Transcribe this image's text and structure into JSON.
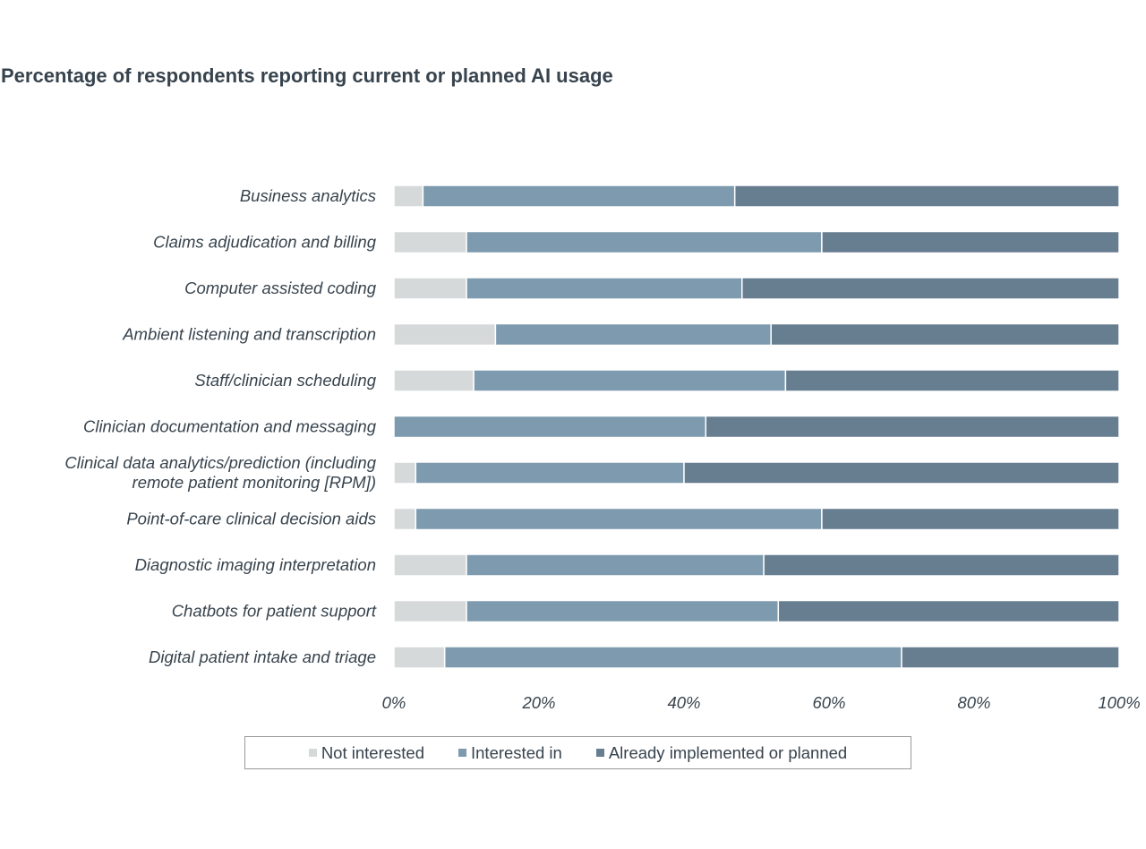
{
  "title": "Percentage of respondents reporting current or planned AI usage",
  "chart_data": {
    "type": "bar",
    "orientation": "horizontal",
    "stacked": true,
    "title": "Percentage of respondents reporting current or planned AI usage",
    "xlabel": "",
    "ylabel": "",
    "xlim": [
      0,
      100
    ],
    "xticks": [
      "0%",
      "20%",
      "40%",
      "60%",
      "80%",
      "100%"
    ],
    "categories": [
      [
        "Business analytics"
      ],
      [
        "Claims adjudication and billing"
      ],
      [
        "Computer assisted coding"
      ],
      [
        "Ambient listening and transcription"
      ],
      [
        "Staff/clinician scheduling"
      ],
      [
        "Clinician documentation and messaging"
      ],
      [
        "Clinical data analytics/prediction (including",
        "remote patient monitoring [RPM])"
      ],
      [
        "Point-of-care clinical decision aids"
      ],
      [
        "Diagnostic imaging interpretation"
      ],
      [
        "Chatbots for patient support"
      ],
      [
        "Digital patient intake and triage"
      ]
    ],
    "series": [
      {
        "name": "Not interested",
        "color": "#d6d9da",
        "values": [
          4,
          10,
          10,
          14,
          11,
          0,
          3,
          3,
          10,
          10,
          7
        ]
      },
      {
        "name": "Interested in",
        "color": "#7d9aae",
        "values": [
          43,
          49,
          38,
          38,
          43,
          43,
          37,
          56,
          41,
          43,
          63
        ]
      },
      {
        "name": "Already implemented or planned",
        "color": "#677d90",
        "values": [
          53,
          41,
          52,
          48,
          46,
          57,
          60,
          41,
          49,
          47,
          30
        ]
      }
    ],
    "legend": "bottom",
    "grid": false
  }
}
